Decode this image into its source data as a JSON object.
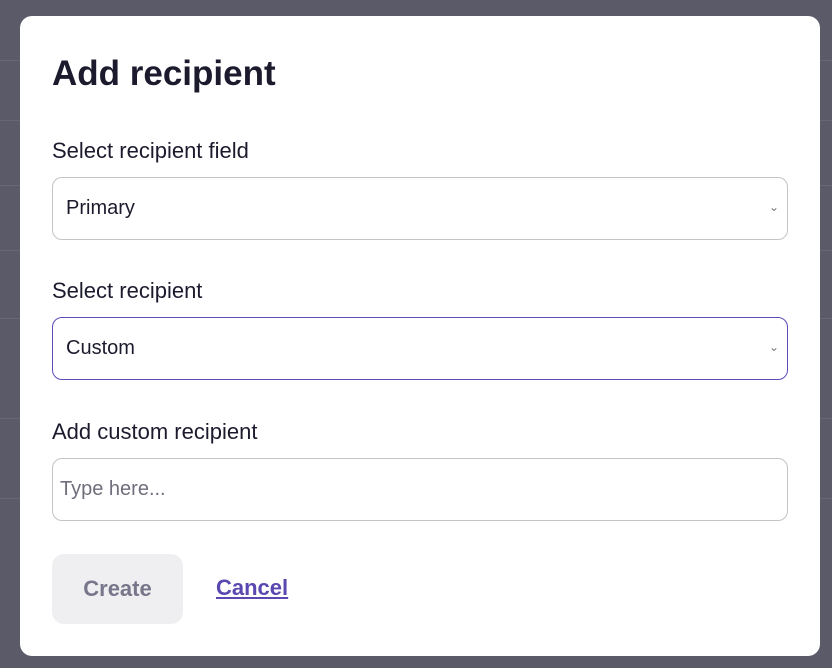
{
  "dialog": {
    "title": "Add recipient",
    "recipient_field": {
      "label": "Select recipient field",
      "value": "Primary"
    },
    "recipient": {
      "label": "Select recipient",
      "value": "Custom"
    },
    "custom_recipient": {
      "label": "Add custom recipient",
      "value": "",
      "placeholder": "Type here..."
    },
    "create_label": "Create",
    "cancel_label": "Cancel"
  },
  "colors": {
    "accent": "#5a47b0",
    "overlay": "#5b5a69",
    "disabled_button": "#efeff1"
  },
  "icons": {
    "select_arrow": "chevron-down-icon"
  }
}
